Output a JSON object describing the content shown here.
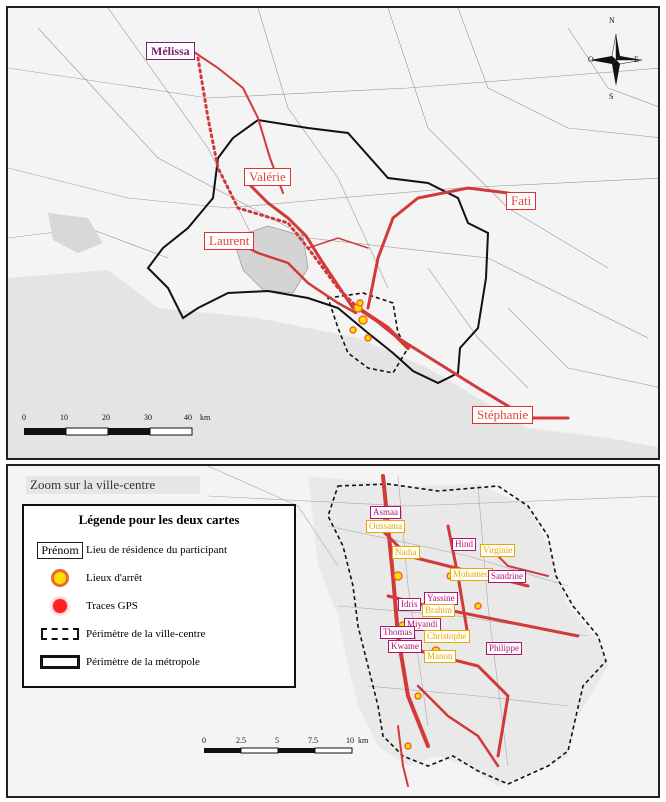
{
  "map1": {
    "participants": [
      {
        "name": "Mélissa",
        "style": "purple"
      },
      {
        "name": "Valérie",
        "style": "big"
      },
      {
        "name": "Fati",
        "style": "big"
      },
      {
        "name": "Laurent",
        "style": "big"
      },
      {
        "name": "Stéphanie",
        "style": "big"
      }
    ],
    "scale": {
      "ticks": [
        "0",
        "10",
        "20",
        "30",
        "40"
      ],
      "unit": "km"
    },
    "compass": {
      "n": "N",
      "e": "E",
      "s": "S",
      "o": "O"
    }
  },
  "map2": {
    "title": "Zoom sur la ville-centre",
    "participants": [
      {
        "name": "Asmaa",
        "style": "m"
      },
      {
        "name": "Oussama",
        "style": "y"
      },
      {
        "name": "Nadia",
        "style": "y"
      },
      {
        "name": "Hind",
        "style": "m"
      },
      {
        "name": "Virginie",
        "style": "y"
      },
      {
        "name": "Mohamed",
        "style": "y"
      },
      {
        "name": "Sandrine",
        "style": "m"
      },
      {
        "name": "Yassine",
        "style": "m"
      },
      {
        "name": "Idris",
        "style": "m"
      },
      {
        "name": "Brahim",
        "style": "y"
      },
      {
        "name": "Miyandi",
        "style": "m"
      },
      {
        "name": "Thomas",
        "style": "m"
      },
      {
        "name": "Christophe",
        "style": "y"
      },
      {
        "name": "Kwame",
        "style": "m"
      },
      {
        "name": "Manon",
        "style": "y"
      },
      {
        "name": "Philippe",
        "style": "m"
      }
    ],
    "scale": {
      "ticks": [
        "0",
        "2.5",
        "5",
        "7.5",
        "10"
      ],
      "unit": "km"
    }
  },
  "legend": {
    "title": "Légende pour les deux cartes",
    "items": [
      {
        "symbol": "Prénom",
        "label": "Lieu de résidence du participant"
      },
      {
        "label": "Lieux d'arrêt"
      },
      {
        "label": "Traces GPS"
      },
      {
        "label": "Périmètre de la ville-centre"
      },
      {
        "label": "Périmètre de la métropole"
      }
    ]
  },
  "colors": {
    "trace": "#d23a3a",
    "stop": "#ffe000",
    "boundary": "#111111"
  }
}
